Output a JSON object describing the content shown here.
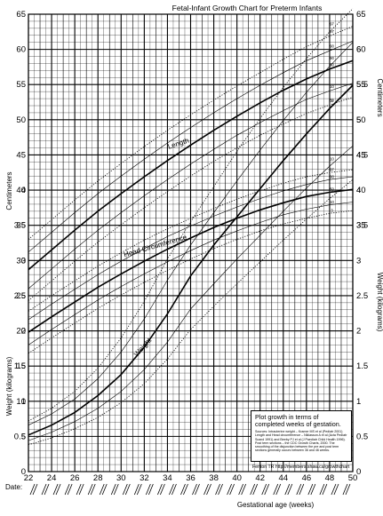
{
  "chart_data": {
    "type": "line",
    "title": "Fetal-Infant Growth Chart for Preterm Infants",
    "xlabel": "Gestational age (weeks)",
    "ylabel_left_top": "Centimeters",
    "ylabel_right_top": "Centimeters",
    "ylabel_left_bottom": "Weight (kilograms)",
    "ylabel_right_bottom": "Weight (kilograms)",
    "date_label": "Date:",
    "x_ticks": [
      22,
      24,
      26,
      28,
      30,
      32,
      34,
      36,
      38,
      40,
      42,
      44,
      46,
      48,
      50
    ],
    "xlim": [
      22,
      50
    ],
    "ylim_cm": [
      0,
      65
    ],
    "y_ticks_cm_left": [
      5,
      10,
      15,
      20,
      25,
      30,
      35,
      40,
      45,
      50,
      55,
      60,
      65
    ],
    "y_ticks_cm_right": [
      35,
      40,
      45,
      50,
      55,
      60,
      65
    ],
    "ylim_kg": [
      0,
      6.5
    ],
    "y_ticks_kg_left": [
      "0",
      "0.5",
      "1",
      "1.5",
      "2",
      "2.5",
      "3",
      "3.5",
      "4"
    ],
    "y_ticks_kg_right": [
      "0",
      "0.5",
      "1",
      "1.5",
      "2",
      "2.5",
      "3",
      "3.5",
      "4",
      "4.5",
      "5",
      "5.5",
      "6"
    ],
    "grid": true,
    "percentiles": [
      "3",
      "10",
      "50",
      "90",
      "97"
    ],
    "x": [
      22,
      24,
      26,
      28,
      30,
      32,
      34,
      36,
      38,
      40,
      42,
      44,
      46,
      48,
      50
    ],
    "groups": [
      {
        "name": "Length",
        "series": [
          {
            "name": "97",
            "values": [
              33.0,
              35.8,
              38.6,
              41.3,
              43.8,
              46.2,
              48.5,
              50.7,
              52.8,
              54.8,
              56.7,
              58.6,
              60.4,
              61.9,
              63.3
            ]
          },
          {
            "name": "90",
            "values": [
              31.2,
              34.0,
              36.8,
              39.5,
              42.0,
              44.4,
              46.7,
              48.9,
              51.0,
              53.0,
              54.9,
              56.7,
              58.4,
              59.8,
              61.2
            ]
          },
          {
            "name": "50",
            "values": [
              28.7,
              31.5,
              34.3,
              37.0,
              39.5,
              41.9,
              44.2,
              46.4,
              48.5,
              50.5,
              52.4,
              54.2,
              55.8,
              57.2,
              58.4
            ]
          },
          {
            "name": "10",
            "values": [
              26.0,
              28.8,
              31.6,
              34.3,
              36.8,
              39.2,
              41.5,
              43.7,
              45.8,
              47.8,
              49.6,
              51.3,
              52.9,
              54.1,
              55.2
            ]
          },
          {
            "name": "3",
            "values": [
              24.3,
              27.1,
              29.9,
              32.6,
              35.1,
              37.5,
              39.8,
              42.0,
              44.1,
              46.0,
              47.8,
              49.4,
              50.9,
              52.1,
              53.2
            ]
          }
        ]
      },
      {
        "name": "Head Circumference",
        "series": [
          {
            "name": "97",
            "values": [
              22.8,
              25.0,
              27.1,
              29.2,
              31.1,
              32.9,
              34.5,
              36.0,
              37.4,
              38.7,
              39.9,
              41.0,
              41.9,
              42.5,
              42.9
            ]
          },
          {
            "name": "90",
            "values": [
              21.6,
              23.8,
              25.9,
              28.0,
              29.9,
              31.7,
              33.4,
              34.9,
              36.3,
              37.6,
              38.8,
              39.9,
              40.8,
              41.5,
              41.9
            ]
          },
          {
            "name": "50",
            "values": [
              19.8,
              22.0,
              24.1,
              26.2,
              28.1,
              29.9,
              31.6,
              33.2,
              34.7,
              36.0,
              37.2,
              38.2,
              39.1,
              39.7,
              40.1
            ]
          },
          {
            "name": "10",
            "values": [
              18.0,
              20.2,
              22.3,
              24.4,
              26.3,
              28.1,
              29.8,
              31.4,
              32.9,
              34.2,
              35.4,
              36.5,
              37.3,
              37.9,
              38.3
            ]
          },
          {
            "name": "3",
            "values": [
              16.8,
              19.0,
              21.1,
              23.2,
              25.1,
              26.9,
              28.6,
              30.2,
              31.7,
              33.0,
              34.2,
              35.2,
              36.0,
              36.7,
              37.1
            ]
          }
        ]
      },
      {
        "name": "Weight",
        "series": [
          {
            "name": "97",
            "values": [
              0.72,
              0.9,
              1.14,
              1.47,
              1.9,
              2.42,
              3.02,
              3.55,
              4.05,
              4.55,
              5.02,
              5.46,
              5.87,
              6.25,
              6.58
            ]
          },
          {
            "name": "90",
            "values": [
              0.66,
              0.82,
              1.03,
              1.32,
              1.7,
              2.17,
              2.72,
              3.22,
              3.68,
              4.13,
              4.57,
              4.99,
              5.39,
              5.76,
              6.1
            ]
          },
          {
            "name": "50",
            "values": [
              0.52,
              0.66,
              0.84,
              1.08,
              1.38,
              1.77,
              2.24,
              2.78,
              3.22,
              3.62,
              4.02,
              4.42,
              4.8,
              5.16,
              5.49
            ]
          },
          {
            "name": "10",
            "values": [
              0.44,
              0.56,
              0.71,
              0.9,
              1.14,
              1.45,
              1.84,
              2.31,
              2.67,
              3.02,
              3.36,
              3.7,
              4.03,
              4.34,
              4.63
            ]
          },
          {
            "name": "3",
            "values": [
              0.38,
              0.48,
              0.61,
              0.77,
              0.98,
              1.25,
              1.6,
              2.02,
              2.35,
              2.67,
              2.98,
              3.29,
              3.59,
              3.88,
              4.15
            ]
          }
        ]
      }
    ],
    "annotation": {
      "heading": "Plot growth in terms of completed weeks of gestation.",
      "sources": "Sources: Intrauterine weight – Kramer MS et al (Pediatr 2001) Length and Head circumference – Niklasson A et al (Acta Pediatr Scand 1991) and Beeby PJ et al (J Paediatr Child Health 1996). Post term sections – the CDC Growth Charts, 2000. The smoothing of the disjunction between the pre and post term sections generally occurs between 36 and 46 weeks.",
      "credit": "Fenton TR   http://members.shaw.ca/growthchart"
    },
    "colors": {
      "line": "#000000",
      "grid": "#000000"
    }
  }
}
